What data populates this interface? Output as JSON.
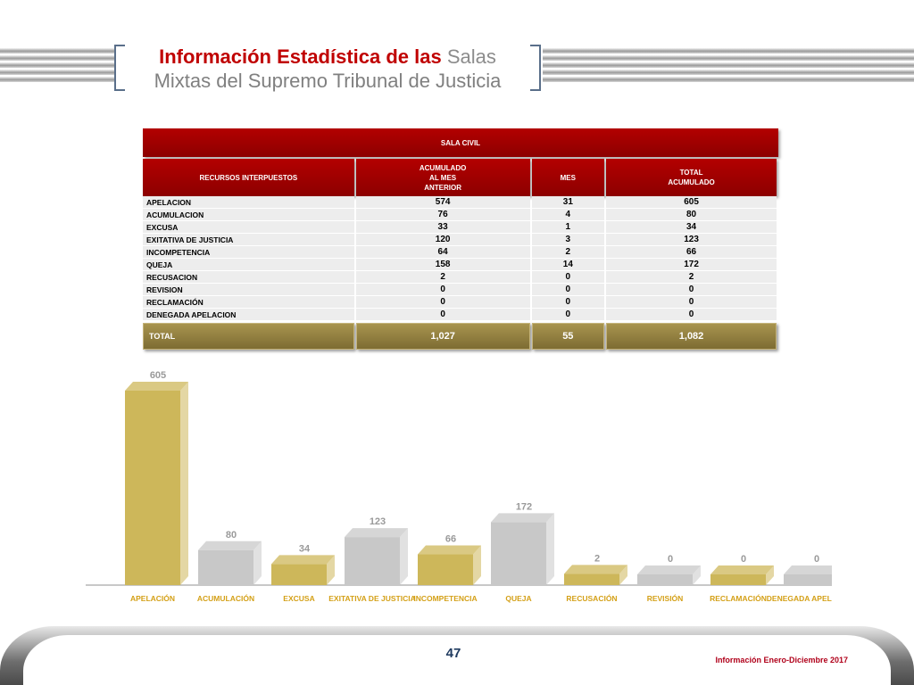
{
  "header": {
    "title_red": "Información Estadística de las",
    "title_gray": "Salas",
    "title_line2": "Mixtas del Supremo Tribunal de Justicia"
  },
  "table": {
    "caption": "SALA  CIVIL",
    "headers": {
      "col1": "RECURSOS INTERPUESTOS",
      "col2": "ACUMULADO\nAL MES\nANTERIOR",
      "col3": "MES",
      "col4": "TOTAL\nACUMULADO"
    },
    "rows": [
      {
        "label": "APELACION",
        "prev": "574",
        "mes": "31",
        "total": "605"
      },
      {
        "label": "ACUMULACION",
        "prev": "76",
        "mes": "4",
        "total": "80"
      },
      {
        "label": "EXCUSA",
        "prev": "33",
        "mes": "1",
        "total": "34"
      },
      {
        "label": "EXITATIVA DE JUSTICIA",
        "prev": "120",
        "mes": "3",
        "total": "123"
      },
      {
        "label": "INCOMPETENCIA",
        "prev": "64",
        "mes": "2",
        "total": "66"
      },
      {
        "label": "QUEJA",
        "prev": "158",
        "mes": "14",
        "total": "172"
      },
      {
        "label": "RECUSACION",
        "prev": "2",
        "mes": "0",
        "total": "2"
      },
      {
        "label": "REVISION",
        "prev": "0",
        "mes": "0",
        "total": "0"
      },
      {
        "label": "RECLAMACIÓN",
        "prev": "0",
        "mes": "0",
        "total": "0"
      },
      {
        "label": "DENEGADA APELACION",
        "prev": "0",
        "mes": "0",
        "total": "0"
      }
    ],
    "total": {
      "label": "TOTAL",
      "prev": "1,027",
      "mes": "55",
      "total": "1,082"
    }
  },
  "chart_data": {
    "type": "bar",
    "categories": [
      "APELACIÓN",
      "ACUMULACIÓN",
      "EXCUSA",
      "EXITATIVA DE JUSTICIA",
      "INCOMPETENCIA",
      "QUEJA",
      "RECUSACIÓN",
      "REVISIÓN",
      "RECLAMACIÓN",
      "DENEGADA APELACIÓN"
    ],
    "values": [
      605,
      80,
      34,
      123,
      66,
      172,
      2,
      0,
      0,
      0
    ],
    "ylim": [
      0,
      605
    ],
    "colors": [
      "#cdb75a",
      "#c8c8c8"
    ],
    "label_color": "#9a9a9a",
    "category_color": "#d4a017",
    "grid": false
  },
  "footer": {
    "page_number": "47",
    "period": "Información Enero-Diciembre 2017"
  }
}
